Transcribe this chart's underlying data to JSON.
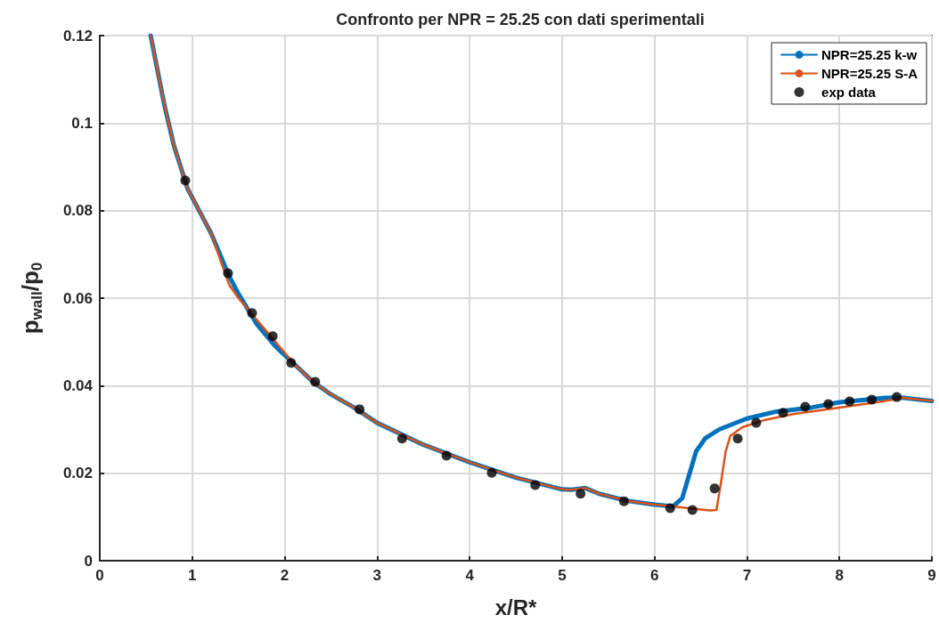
{
  "chart_data": {
    "type": "line",
    "title": "Confronto per NPR = 25.25 con dati sperimentali",
    "xlabel": "x/R*",
    "ylabel": "p$_{wall}$/p$_{0}$",
    "xlim": [
      0,
      9
    ],
    "xticks": [
      0,
      1,
      2,
      3,
      4,
      5,
      6,
      7,
      8,
      9
    ],
    "ylim": [
      0,
      0.12
    ],
    "yticks": [
      0,
      0.02,
      0.04,
      0.06,
      0.08,
      0.1,
      0.12
    ],
    "grid": true,
    "legend": "top right",
    "marker": "none",
    "line_style": "solid",
    "series": [
      {
        "name": "NPR=25.25 k-w",
        "color": "#0072bd",
        "x": [
          0.55,
          0.7,
          0.8,
          0.95,
          1.1,
          1.2,
          1.3,
          1.4,
          1.5,
          1.7,
          1.9,
          2.1,
          2.3,
          2.5,
          2.75,
          3.0,
          3.5,
          4.0,
          4.5,
          5.0,
          5.1,
          5.25,
          5.4,
          5.7,
          6.0,
          6.2,
          6.3,
          6.38,
          6.45,
          6.55,
          6.7,
          7.0,
          7.3,
          7.7,
          8.0,
          8.5,
          8.7,
          9.0
        ],
        "values": [
          0.12,
          0.104,
          0.095,
          0.085,
          0.079,
          0.075,
          0.07,
          0.065,
          0.061,
          0.054,
          0.049,
          0.045,
          0.041,
          0.038,
          0.035,
          0.0315,
          0.0265,
          0.0225,
          0.019,
          0.0163,
          0.0162,
          0.0166,
          0.0153,
          0.0137,
          0.0128,
          0.0124,
          0.0143,
          0.02,
          0.025,
          0.028,
          0.03,
          0.0325,
          0.034,
          0.035,
          0.0362,
          0.0372,
          0.0372,
          0.0365
        ]
      },
      {
        "name": "NPR=25.25 S-A",
        "color": "#d95319",
        "x": [
          0.55,
          0.7,
          0.8,
          0.95,
          1.1,
          1.2,
          1.3,
          1.4,
          1.5,
          1.7,
          1.9,
          2.1,
          2.3,
          2.5,
          2.75,
          3.0,
          3.5,
          4.0,
          4.5,
          5.0,
          5.1,
          5.25,
          5.4,
          5.7,
          6.0,
          6.2,
          6.5,
          6.6,
          6.67,
          6.72,
          6.77,
          6.82,
          6.95,
          7.2,
          7.5,
          8.0,
          8.4,
          8.7,
          9.0
        ],
        "values": [
          0.12,
          0.104,
          0.095,
          0.085,
          0.079,
          0.075,
          0.069,
          0.063,
          0.06,
          0.055,
          0.05,
          0.045,
          0.041,
          0.038,
          0.035,
          0.0315,
          0.0265,
          0.0225,
          0.019,
          0.0163,
          0.0162,
          0.0166,
          0.0153,
          0.0137,
          0.0128,
          0.0124,
          0.0117,
          0.0115,
          0.0116,
          0.018,
          0.025,
          0.0285,
          0.0305,
          0.0322,
          0.0335,
          0.035,
          0.0362,
          0.0372,
          0.0365
        ]
      },
      {
        "name": "exp data",
        "type": "scatter",
        "marker": "circle",
        "color": "#000000",
        "x": [
          0.925,
          1.387,
          1.647,
          1.87,
          2.07,
          2.33,
          2.81,
          3.27,
          3.75,
          4.24,
          4.71,
          5.2,
          5.67,
          6.17,
          6.41,
          6.65,
          6.9,
          7.1,
          7.39,
          7.63,
          7.88,
          8.11,
          8.35,
          8.62
        ],
        "values": [
          0.0869,
          0.0657,
          0.0566,
          0.0513,
          0.0452,
          0.0409,
          0.0346,
          0.0279,
          0.024,
          0.0201,
          0.0173,
          0.0153,
          0.0136,
          0.012,
          0.0116,
          0.0165,
          0.0279,
          0.0315,
          0.0338,
          0.0352,
          0.0358,
          0.0364,
          0.0368,
          0.0374
        ]
      }
    ]
  }
}
